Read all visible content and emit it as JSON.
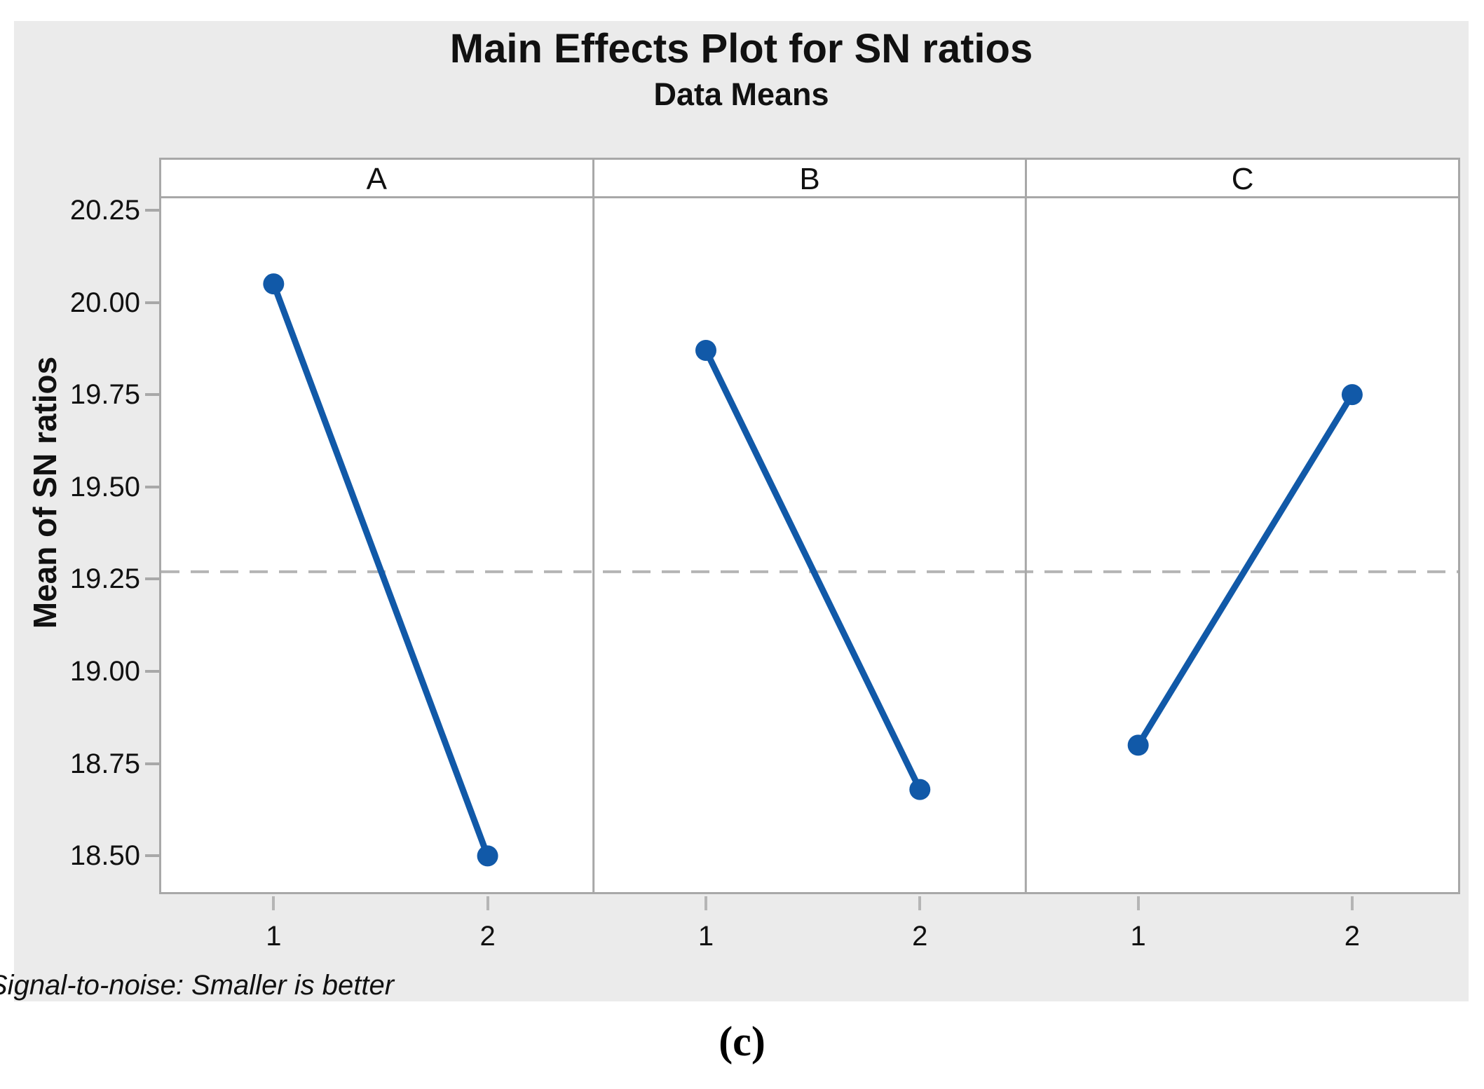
{
  "figure": {
    "title": "Main Effects Plot for SN ratios",
    "subtitle": "Data Means",
    "ylabel": "Mean of SN ratios",
    "footnote": "Signal-to-noise: Smaller is better",
    "caption": "(c)"
  },
  "chart_data": {
    "type": "line",
    "title": "Main Effects Plot for SN ratios",
    "subtitle": "Data Means",
    "ylabel": "Mean of SN ratios",
    "xlabel": "",
    "panels": [
      {
        "label": "A",
        "x": [
          "1",
          "2"
        ],
        "values": [
          20.05,
          18.5
        ]
      },
      {
        "label": "B",
        "x": [
          "1",
          "2"
        ],
        "values": [
          19.87,
          18.68
        ]
      },
      {
        "label": "C",
        "x": [
          "1",
          "2"
        ],
        "values": [
          18.8,
          19.75
        ]
      }
    ],
    "reference_line": 19.27,
    "yticks": [
      "20.25",
      "20.00",
      "19.75",
      "19.50",
      "19.25",
      "19.00",
      "18.75",
      "18.50"
    ],
    "ytick_values": [
      20.25,
      20.0,
      19.75,
      19.5,
      19.25,
      19.0,
      18.75,
      18.5
    ],
    "ylim": [
      18.402,
      20.282
    ],
    "grid": false,
    "legend": null,
    "footnote": "Signal-to-noise: Smaller is better",
    "colors": {
      "series": "#1159a8",
      "reference_line": "#b5b5b5",
      "panel_border": "#a8a8a8",
      "figure_background": "#ebebeb",
      "plot_background": "#ffffff",
      "text": "#111111"
    }
  }
}
